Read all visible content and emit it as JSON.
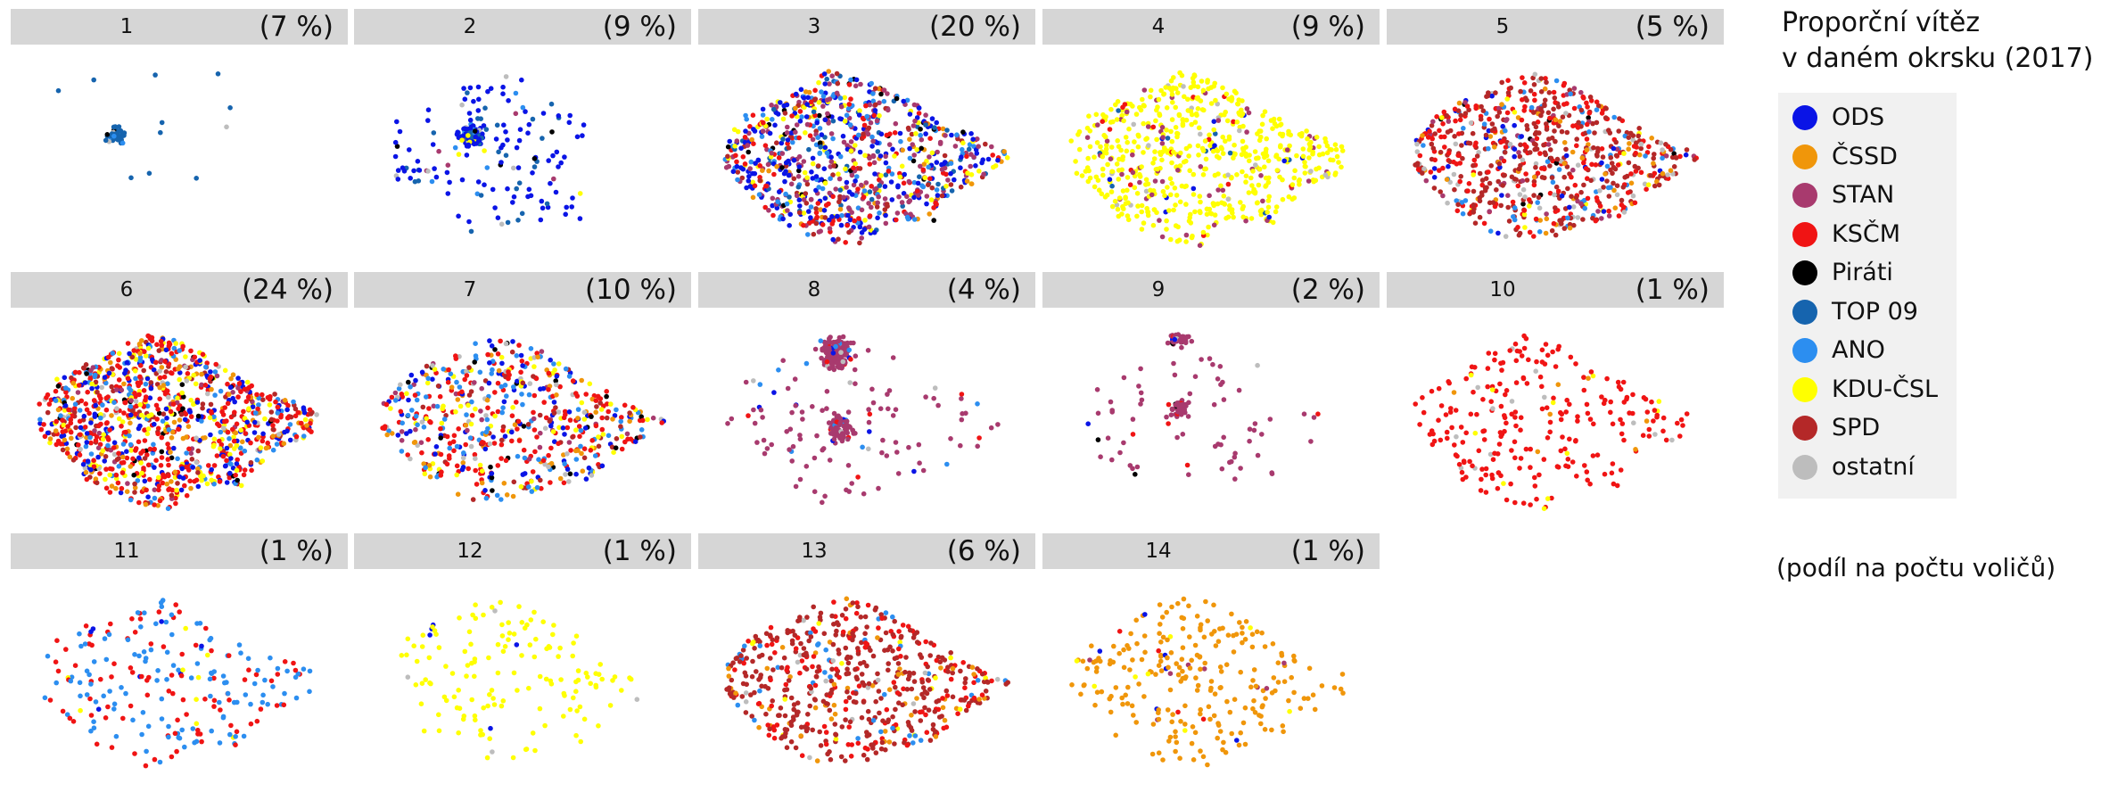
{
  "chart_data": {
    "type": "scatter",
    "title": "",
    "legend": {
      "title_line1": "Proporční vítěz",
      "title_line2": "v daném okrsku (2017)",
      "placement": "right",
      "entries": [
        {
          "name": "ODS",
          "color": "#0a14e6"
        },
        {
          "name": "ČSSD",
          "color": "#f0960a"
        },
        {
          "name": "STAN",
          "color": "#a83a6e"
        },
        {
          "name": "KSČM",
          "color": "#f01414"
        },
        {
          "name": "Piráti",
          "color": "#000000"
        },
        {
          "name": "TOP 09",
          "color": "#1664ae"
        },
        {
          "name": "ANO",
          "color": "#2c8ef0"
        },
        {
          "name": "KDU-ČSL",
          "color": "#ffff00"
        },
        {
          "name": "SPD",
          "color": "#b42828"
        },
        {
          "name": "ostatní",
          "color": "#bdbdbd"
        }
      ]
    },
    "footnote": "(podíl na počtu voličů)",
    "panels": [
      {
        "label": "1",
        "share": "(7 %)",
        "mix": {
          "TOP 09": 0.8,
          "ANO": 0.1,
          "Piráti": 0.05,
          "ostatní": 0.05
        }
      },
      {
        "label": "2",
        "share": "(9 %)",
        "mix": {
          "ODS": 0.65,
          "TOP 09": 0.15,
          "ANO": 0.06,
          "Piráti": 0.04,
          "STAN": 0.04,
          "ostatní": 0.03,
          "KDU-ČSL": 0.03
        }
      },
      {
        "label": "3",
        "share": "(20 %)",
        "mix": {
          "ODS": 0.22,
          "STAN": 0.22,
          "ANO": 0.12,
          "KSČM": 0.12,
          "KDU-ČSL": 0.1,
          "SPD": 0.08,
          "TOP 09": 0.06,
          "Piráti": 0.04,
          "ČSSD": 0.04
        }
      },
      {
        "label": "4",
        "share": "(9 %)",
        "mix": {
          "KDU-ČSL": 0.82,
          "STAN": 0.08,
          "KSČM": 0.04,
          "ODS": 0.02,
          "TOP 09": 0.02,
          "ostatní": 0.02
        }
      },
      {
        "label": "5",
        "share": "(5 %)",
        "mix": {
          "SPD": 0.4,
          "KSČM": 0.25,
          "ANO": 0.08,
          "ČSSD": 0.08,
          "ostatní": 0.06,
          "STAN": 0.05,
          "ODS": 0.04,
          "Piráti": 0.02,
          "KDU-ČSL": 0.02
        }
      },
      {
        "label": "6",
        "share": "(24 %)",
        "mix": {
          "KSČM": 0.35,
          "ODS": 0.12,
          "KDU-ČSL": 0.12,
          "ČSSD": 0.1,
          "SPD": 0.1,
          "ANO": 0.1,
          "STAN": 0.05,
          "Piráti": 0.03,
          "ostatní": 0.03
        }
      },
      {
        "label": "7",
        "share": "(10 %)",
        "mix": {
          "KSČM": 0.3,
          "ANO": 0.15,
          "ODS": 0.12,
          "KDU-ČSL": 0.1,
          "ČSSD": 0.1,
          "SPD": 0.08,
          "ostatní": 0.06,
          "STAN": 0.05,
          "Piráti": 0.04
        }
      },
      {
        "label": "8",
        "share": "(4 %)",
        "mix": {
          "STAN": 0.85,
          "KSČM": 0.05,
          "ANO": 0.04,
          "ODS": 0.03,
          "ostatní": 0.03
        }
      },
      {
        "label": "9",
        "share": "(2 %)",
        "mix": {
          "STAN": 0.82,
          "Piráti": 0.06,
          "KSČM": 0.05,
          "ODS": 0.03,
          "ostatní": 0.04
        }
      },
      {
        "label": "10",
        "share": "(1 %)",
        "mix": {
          "KSČM": 0.88,
          "KDU-ČSL": 0.05,
          "ČSSD": 0.04,
          "ostatní": 0.03
        }
      },
      {
        "label": "11",
        "share": "(1 %)",
        "mix": {
          "ANO": 0.5,
          "KSČM": 0.4,
          "ODS": 0.05,
          "KDU-ČSL": 0.05
        }
      },
      {
        "label": "12",
        "share": "(1 %)",
        "mix": {
          "KDU-ČSL": 0.95,
          "ODS": 0.03,
          "ostatní": 0.02
        }
      },
      {
        "label": "13",
        "share": "(6 %)",
        "mix": {
          "SPD": 0.55,
          "KSČM": 0.25,
          "ČSSD": 0.08,
          "ANO": 0.05,
          "ostatní": 0.04,
          "KDU-ČSL": 0.03
        }
      },
      {
        "label": "14",
        "share": "(1 %)",
        "mix": {
          "ČSSD": 0.85,
          "ODS": 0.05,
          "STAN": 0.04,
          "KSČM": 0.03,
          "KDU-ČSL": 0.03
        }
      }
    ]
  }
}
